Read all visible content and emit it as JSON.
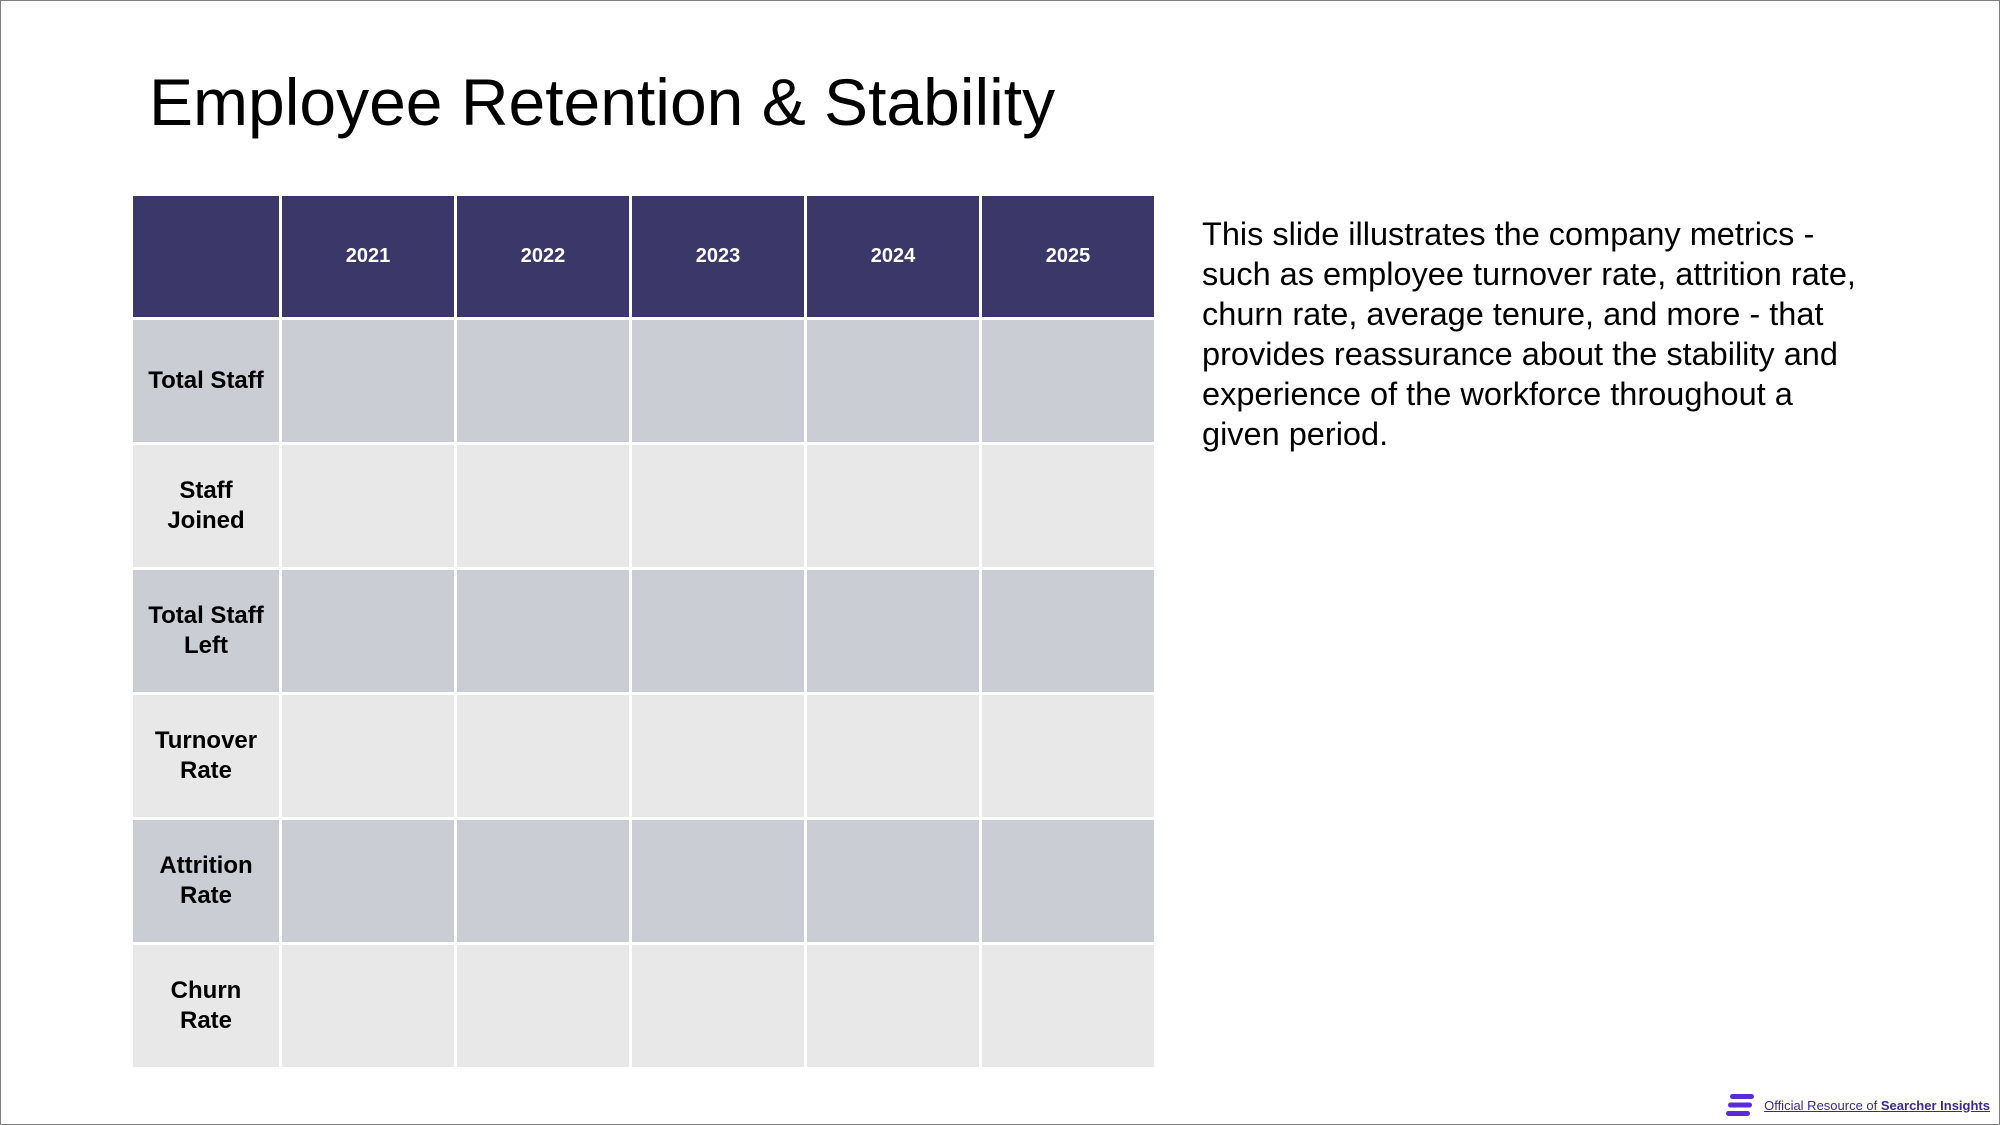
{
  "slide": {
    "title": "Employee Retention & Stability",
    "description": "This slide illustrates the company metrics - such as employee turnover rate, attrition rate, churn rate, average tenure, and more - that provides reassurance about the stability and experience of the workforce throughout a given period."
  },
  "table": {
    "corner_label": "",
    "years": [
      "2021",
      "2022",
      "2023",
      "2024",
      "2025"
    ],
    "rows": [
      {
        "label": "Total Staff",
        "values": [
          "",
          "",
          "",
          "",
          ""
        ]
      },
      {
        "label": "Staff Joined",
        "values": [
          "",
          "",
          "",
          "",
          ""
        ]
      },
      {
        "label": "Total Staff Left",
        "values": [
          "",
          "",
          "",
          "",
          ""
        ]
      },
      {
        "label": "Turnover Rate",
        "values": [
          "",
          "",
          "",
          "",
          ""
        ]
      },
      {
        "label": "Attrition Rate",
        "values": [
          "",
          "",
          "",
          "",
          ""
        ]
      },
      {
        "label": "Churn Rate",
        "values": [
          "",
          "",
          "",
          "",
          ""
        ]
      }
    ],
    "colors": {
      "header": "#3c3769",
      "row_dark": "#cacdd3",
      "row_light": "#e8e8e8"
    }
  },
  "footer": {
    "prefix": "Official Resource of ",
    "brand": "Searcher Insights",
    "logo_icon": "stacked-bars-logo-icon",
    "accent": "#5b2bd6"
  }
}
